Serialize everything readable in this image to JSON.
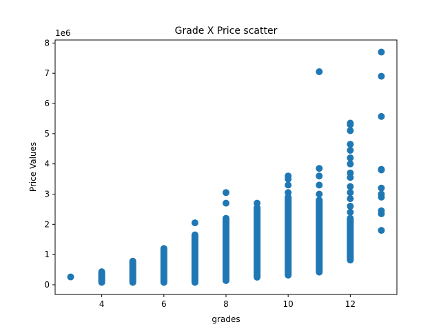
{
  "chart_data": {
    "type": "scatter",
    "title": "Grade X Price scatter",
    "xlabel": "grades",
    "ylabel": "Price Values",
    "y_scale_label": "1e6",
    "xlim": [
      2.5,
      13.5
    ],
    "ylim": [
      -0.32,
      8.1
    ],
    "y_multiplier": 1000000,
    "x_ticks": [
      4,
      6,
      8,
      10,
      12
    ],
    "y_ticks": [
      0,
      1,
      2,
      3,
      4,
      5,
      6,
      7,
      8
    ],
    "grid": false,
    "marker_color": "#1f77b4",
    "series": [
      {
        "ranges": [
          {
            "x": 3,
            "y_min": 0.26,
            "y_max": 0.26
          },
          {
            "x": 4,
            "y_min": 0.08,
            "y_max": 0.43
          },
          {
            "x": 5,
            "y_min": 0.08,
            "y_max": 0.78
          },
          {
            "x": 6,
            "y_min": 0.08,
            "y_max": 1.2
          },
          {
            "x": 7,
            "y_min": 0.08,
            "y_max": 1.65
          },
          {
            "x": 8,
            "y_min": 0.14,
            "y_max": 2.2
          },
          {
            "x": 9,
            "y_min": 0.25,
            "y_max": 2.55
          },
          {
            "x": 10,
            "y_min": 0.32,
            "y_max": 2.9
          },
          {
            "x": 11,
            "y_min": 0.42,
            "y_max": 2.8
          },
          {
            "x": 12,
            "y_min": 0.82,
            "y_max": 2.2
          }
        ],
        "points": [
          {
            "x": 7,
            "y": 2.05
          },
          {
            "x": 8,
            "y": 2.7
          },
          {
            "x": 8,
            "y": 3.05
          },
          {
            "x": 9,
            "y": 2.7
          },
          {
            "x": 10,
            "y": 3.05
          },
          {
            "x": 10,
            "y": 3.3
          },
          {
            "x": 10,
            "y": 3.5
          },
          {
            "x": 10,
            "y": 3.6
          },
          {
            "x": 11,
            "y": 3.0
          },
          {
            "x": 11,
            "y": 3.3
          },
          {
            "x": 11,
            "y": 3.6
          },
          {
            "x": 11,
            "y": 3.85
          },
          {
            "x": 11,
            "y": 7.05
          },
          {
            "x": 12,
            "y": 2.4
          },
          {
            "x": 12,
            "y": 2.6
          },
          {
            "x": 12,
            "y": 2.85
          },
          {
            "x": 12,
            "y": 3.05
          },
          {
            "x": 12,
            "y": 3.25
          },
          {
            "x": 12,
            "y": 3.55
          },
          {
            "x": 12,
            "y": 3.7
          },
          {
            "x": 12,
            "y": 4.0
          },
          {
            "x": 12,
            "y": 4.2
          },
          {
            "x": 12,
            "y": 4.45
          },
          {
            "x": 12,
            "y": 4.65
          },
          {
            "x": 12,
            "y": 5.1
          },
          {
            "x": 12,
            "y": 5.3
          },
          {
            "x": 12,
            "y": 5.35
          },
          {
            "x": 13,
            "y": 1.8
          },
          {
            "x": 13,
            "y": 2.35
          },
          {
            "x": 13,
            "y": 2.45
          },
          {
            "x": 13,
            "y": 2.9
          },
          {
            "x": 13,
            "y": 3.0
          },
          {
            "x": 13,
            "y": 3.2
          },
          {
            "x": 13,
            "y": 3.8
          },
          {
            "x": 13,
            "y": 3.82
          },
          {
            "x": 13,
            "y": 5.57
          },
          {
            "x": 13,
            "y": 6.9
          },
          {
            "x": 13,
            "y": 7.7
          }
        ]
      }
    ]
  }
}
